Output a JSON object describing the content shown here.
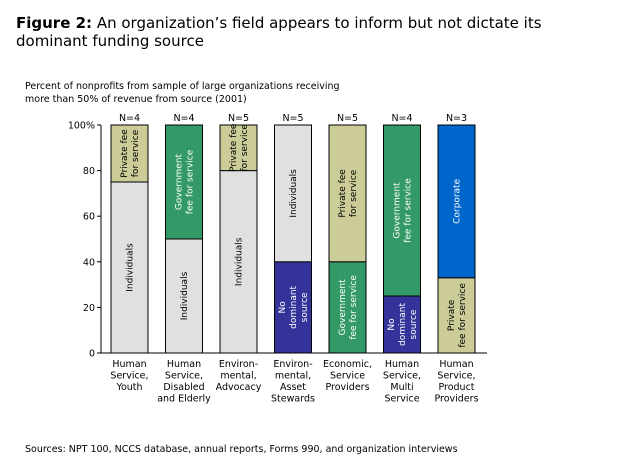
{
  "figure": {
    "title_bold": "Figure 2:",
    "title_rest": "An organization’s field appears to inform but not dictate its dominant funding source",
    "source_note": "Sources: NPT 100, NCCS database, annual reports, Forms 990, and organization interviews"
  },
  "colors": {
    "individuals": "#e0e0e0",
    "private_fee": "#cccc99",
    "government_fee": "#339966",
    "no_dominant": "#333399",
    "corporate": "#0066cc",
    "border": "#000000"
  },
  "chart_data": {
    "type": "bar",
    "stacked": true,
    "ylabel": "Percent of nonprofits from sample of large organizations receiving more than 50% of revenue from source (2001)",
    "ylim": [
      0,
      100
    ],
    "yticks": [
      "0",
      "20",
      "40",
      "60",
      "80",
      "100%"
    ],
    "categories": [
      [
        "Human",
        "Service,",
        "Youth"
      ],
      [
        "Human",
        "Service,",
        "Disabled",
        "and Elderly"
      ],
      [
        "Environ-",
        "mental,",
        "Advocacy"
      ],
      [
        "Environ-",
        "mental,",
        "Asset",
        "Stewards"
      ],
      [
        "Economic,",
        "Service",
        "Providers"
      ],
      [
        "Human",
        "Service,",
        "Multi",
        "Service"
      ],
      [
        "Human",
        "Service,",
        "Product",
        "Providers"
      ]
    ],
    "n_labels": [
      "N=4",
      "N=4",
      "N=5",
      "N=5",
      "N=5",
      "N=4",
      "N=3"
    ],
    "bars": [
      [
        {
          "label": [
            "Individuals"
          ],
          "value": 75,
          "color_key": "individuals",
          "text": "dark"
        },
        {
          "label": [
            "Private fee",
            "for service"
          ],
          "value": 25,
          "color_key": "private_fee",
          "text": "dark"
        }
      ],
      [
        {
          "label": [
            "Individuals"
          ],
          "value": 50,
          "color_key": "individuals",
          "text": "dark"
        },
        {
          "label": [
            "Government",
            "fee for service"
          ],
          "value": 50,
          "color_key": "government_fee",
          "text": "light"
        }
      ],
      [
        {
          "label": [
            "Individuals"
          ],
          "value": 80,
          "color_key": "individuals",
          "text": "dark"
        },
        {
          "label": [
            "Private fee",
            "for service"
          ],
          "value": 20,
          "color_key": "private_fee",
          "text": "dark"
        }
      ],
      [
        {
          "label": [
            "No",
            "dominant",
            "source"
          ],
          "value": 40,
          "color_key": "no_dominant",
          "text": "light"
        },
        {
          "label": [
            "Individuals"
          ],
          "value": 60,
          "color_key": "individuals",
          "text": "dark"
        }
      ],
      [
        {
          "label": [
            "Government",
            "fee for service"
          ],
          "value": 40,
          "color_key": "government_fee",
          "text": "light"
        },
        {
          "label": [
            "Private fee",
            "for service"
          ],
          "value": 60,
          "color_key": "private_fee",
          "text": "dark"
        }
      ],
      [
        {
          "label": [
            "No",
            "dominant",
            "source"
          ],
          "value": 25,
          "color_key": "no_dominant",
          "text": "light"
        },
        {
          "label": [
            "Government",
            "fee for service"
          ],
          "value": 75,
          "color_key": "government_fee",
          "text": "light"
        }
      ],
      [
        {
          "label": [
            "Private",
            "fee for service"
          ],
          "value": 33,
          "color_key": "private_fee",
          "text": "dark"
        },
        {
          "label": [
            "Corporate"
          ],
          "value": 67,
          "color_key": "corporate",
          "text": "light"
        }
      ]
    ]
  }
}
